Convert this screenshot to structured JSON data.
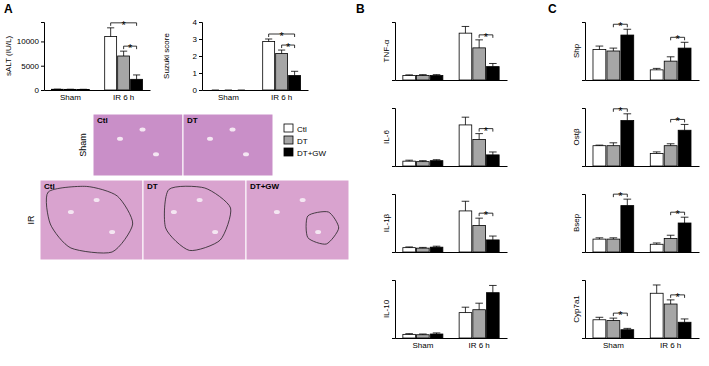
{
  "panel_labels": [
    "A",
    "B",
    "C"
  ],
  "histology": {
    "rows": [
      {
        "label": "Sham",
        "panels": [
          "Ctl",
          "DT"
        ]
      },
      {
        "label": "IR",
        "panels": [
          "Ctl",
          "DT",
          "DT+GW"
        ]
      }
    ]
  },
  "chart_data": [
    {
      "type": "bar",
      "y_label": "sALT (IU/L)",
      "categories": [
        "Sham",
        "IR 6 h"
      ],
      "ylim": [
        0,
        14000
      ],
      "yticks": [
        0,
        5000,
        10000
      ],
      "legend": "right",
      "series": [
        {
          "name": "Ctl",
          "color": "#ffffff",
          "values": [
            150,
            11000
          ],
          "errors": [
            30,
            1800
          ]
        },
        {
          "name": "DT",
          "color": "#a6a6a6",
          "values": [
            130,
            7000
          ],
          "errors": [
            30,
            1000
          ]
        },
        {
          "name": "DT+GW",
          "color": "#000000",
          "values": [
            120,
            2200
          ],
          "errors": [
            30,
            900
          ]
        }
      ],
      "significance": [
        {
          "group": 1,
          "pair": [
            1,
            2
          ],
          "text": "*"
        },
        {
          "group": 1,
          "pair": [
            0,
            2
          ],
          "text": "*"
        }
      ]
    },
    {
      "type": "bar",
      "y_label": "Suzuki score",
      "categories": [
        "Sham",
        "IR 6 h"
      ],
      "ylim": [
        0,
        4
      ],
      "yticks": [
        0,
        1,
        2,
        3,
        4
      ],
      "series": [
        {
          "color": "#ffffff",
          "values": [
            0,
            2.85
          ],
          "errors": [
            0,
            0.15
          ]
        },
        {
          "color": "#a6a6a6",
          "values": [
            0,
            2.15
          ],
          "errors": [
            0,
            0.2
          ]
        },
        {
          "color": "#000000",
          "values": [
            0,
            0.85
          ],
          "errors": [
            0,
            0.25
          ]
        }
      ],
      "significance": [
        {
          "group": 1,
          "pair": [
            1,
            2
          ],
          "text": "*"
        },
        {
          "group": 1,
          "pair": [
            0,
            2
          ],
          "text": "*"
        }
      ]
    },
    {
      "type": "bar",
      "y_label": "TNF-α",
      "categories": [
        null,
        null
      ],
      "tick_labels": false,
      "ylim": [
        0,
        13
      ],
      "series": [
        {
          "color": "#ffffff",
          "values": [
            1.0,
            10.5
          ],
          "errors": [
            0.15,
            1.5
          ]
        },
        {
          "color": "#a6a6a6",
          "values": [
            1.0,
            7.2
          ],
          "errors": [
            0.2,
            1.8
          ]
        },
        {
          "color": "#000000",
          "values": [
            1.0,
            3.0
          ],
          "errors": [
            0.2,
            0.7
          ]
        }
      ],
      "significance": [
        {
          "group": 1,
          "pair": [
            1,
            2
          ],
          "text": "*"
        }
      ]
    },
    {
      "type": "bar",
      "y_label": "IL-6",
      "categories": [
        null,
        null
      ],
      "tick_labels": false,
      "ylim": [
        0,
        12
      ],
      "series": [
        {
          "color": "#ffffff",
          "values": [
            1.0,
            8.5
          ],
          "errors": [
            0.2,
            1.6
          ]
        },
        {
          "color": "#a6a6a6",
          "values": [
            0.9,
            5.5
          ],
          "errors": [
            0.2,
            1.2
          ]
        },
        {
          "color": "#000000",
          "values": [
            1.1,
            2.3
          ],
          "errors": [
            0.2,
            0.6
          ]
        }
      ],
      "significance": [
        {
          "group": 1,
          "pair": [
            1,
            2
          ],
          "text": "*"
        }
      ]
    },
    {
      "type": "bar",
      "y_label": "IL-1β",
      "categories": [
        null,
        null
      ],
      "tick_labels": false,
      "ylim": [
        0,
        12
      ],
      "series": [
        {
          "color": "#ffffff",
          "values": [
            0.9,
            8.5
          ],
          "errors": [
            0.15,
            2.0
          ]
        },
        {
          "color": "#a6a6a6",
          "values": [
            0.8,
            5.5
          ],
          "errors": [
            0.15,
            1.5
          ]
        },
        {
          "color": "#000000",
          "values": [
            1.0,
            2.5
          ],
          "errors": [
            0.2,
            0.8
          ]
        }
      ],
      "significance": [
        {
          "group": 1,
          "pair": [
            1,
            2
          ],
          "text": "*"
        }
      ]
    },
    {
      "type": "bar",
      "y_label": "IL-10",
      "categories": [
        "Sham",
        "IR 6 h"
      ],
      "tick_labels": "x",
      "ylim": [
        0,
        16
      ],
      "series": [
        {
          "color": "#ffffff",
          "values": [
            1.0,
            7.0
          ],
          "errors": [
            0.2,
            1.5
          ]
        },
        {
          "color": "#a6a6a6",
          "values": [
            0.9,
            7.8
          ],
          "errors": [
            0.2,
            1.8
          ]
        },
        {
          "color": "#000000",
          "values": [
            1.1,
            12.5
          ],
          "errors": [
            0.3,
            2.0
          ]
        }
      ]
    },
    {
      "type": "bar",
      "y_label": "Shp",
      "categories": [
        null,
        null
      ],
      "tick_labels": false,
      "ylim": [
        0,
        2
      ],
      "series": [
        {
          "color": "#ffffff",
          "values": [
            1.05,
            0.35
          ],
          "errors": [
            0.12,
            0.05
          ]
        },
        {
          "color": "#a6a6a6",
          "values": [
            1.0,
            0.65
          ],
          "errors": [
            0.1,
            0.15
          ]
        },
        {
          "color": "#000000",
          "values": [
            1.55,
            1.1
          ],
          "errors": [
            0.2,
            0.2
          ]
        }
      ],
      "significance": [
        {
          "group": 0,
          "pair": [
            1,
            2
          ],
          "text": "*"
        },
        {
          "group": 1,
          "pair": [
            1,
            2
          ],
          "text": "*"
        }
      ]
    },
    {
      "type": "bar",
      "y_label": "Ostβ",
      "categories": [
        null,
        null
      ],
      "tick_labels": false,
      "ylim": [
        0,
        3
      ],
      "series": [
        {
          "color": "#ffffff",
          "values": [
            1.05,
            0.65
          ],
          "errors": [
            0.03,
            0.08
          ]
        },
        {
          "color": "#a6a6a6",
          "values": [
            1.05,
            1.05
          ],
          "errors": [
            0.15,
            0.1
          ]
        },
        {
          "color": "#000000",
          "values": [
            2.35,
            1.85
          ],
          "errors": [
            0.35,
            0.3
          ]
        }
      ],
      "significance": [
        {
          "group": 0,
          "pair": [
            1,
            2
          ],
          "text": "*"
        },
        {
          "group": 1,
          "pair": [
            1,
            2
          ],
          "text": "*"
        }
      ]
    },
    {
      "type": "bar",
      "y_label": "Bsep",
      "categories": [
        null,
        null
      ],
      "tick_labels": false,
      "ylim": [
        0,
        4.5
      ],
      "series": [
        {
          "color": "#ffffff",
          "values": [
            1.0,
            0.6
          ],
          "errors": [
            0.1,
            0.1
          ]
        },
        {
          "color": "#a6a6a6",
          "values": [
            1.0,
            1.05
          ],
          "errors": [
            0.1,
            0.25
          ]
        },
        {
          "color": "#000000",
          "values": [
            3.6,
            2.25
          ],
          "errors": [
            0.5,
            0.45
          ]
        }
      ],
      "significance": [
        {
          "group": 0,
          "pair": [
            1,
            2
          ],
          "text": "*"
        },
        {
          "group": 1,
          "pair": [
            1,
            2
          ],
          "text": "*"
        }
      ]
    },
    {
      "type": "bar",
      "y_label": "Cyp7a1",
      "categories": [
        "Sham",
        "IR 6 h"
      ],
      "tick_labels": "x",
      "ylim": [
        0,
        3.5
      ],
      "series": [
        {
          "color": "#ffffff",
          "values": [
            1.1,
            2.7
          ],
          "errors": [
            0.15,
            0.5
          ]
        },
        {
          "color": "#a6a6a6",
          "values": [
            1.05,
            2.05
          ],
          "errors": [
            0.15,
            0.25
          ]
        },
        {
          "color": "#000000",
          "values": [
            0.5,
            0.95
          ],
          "errors": [
            0.08,
            0.2
          ]
        }
      ],
      "significance": [
        {
          "group": 0,
          "pair": [
            1,
            2
          ],
          "text": "*"
        },
        {
          "group": 1,
          "pair": [
            1,
            2
          ],
          "text": "*"
        }
      ]
    }
  ]
}
